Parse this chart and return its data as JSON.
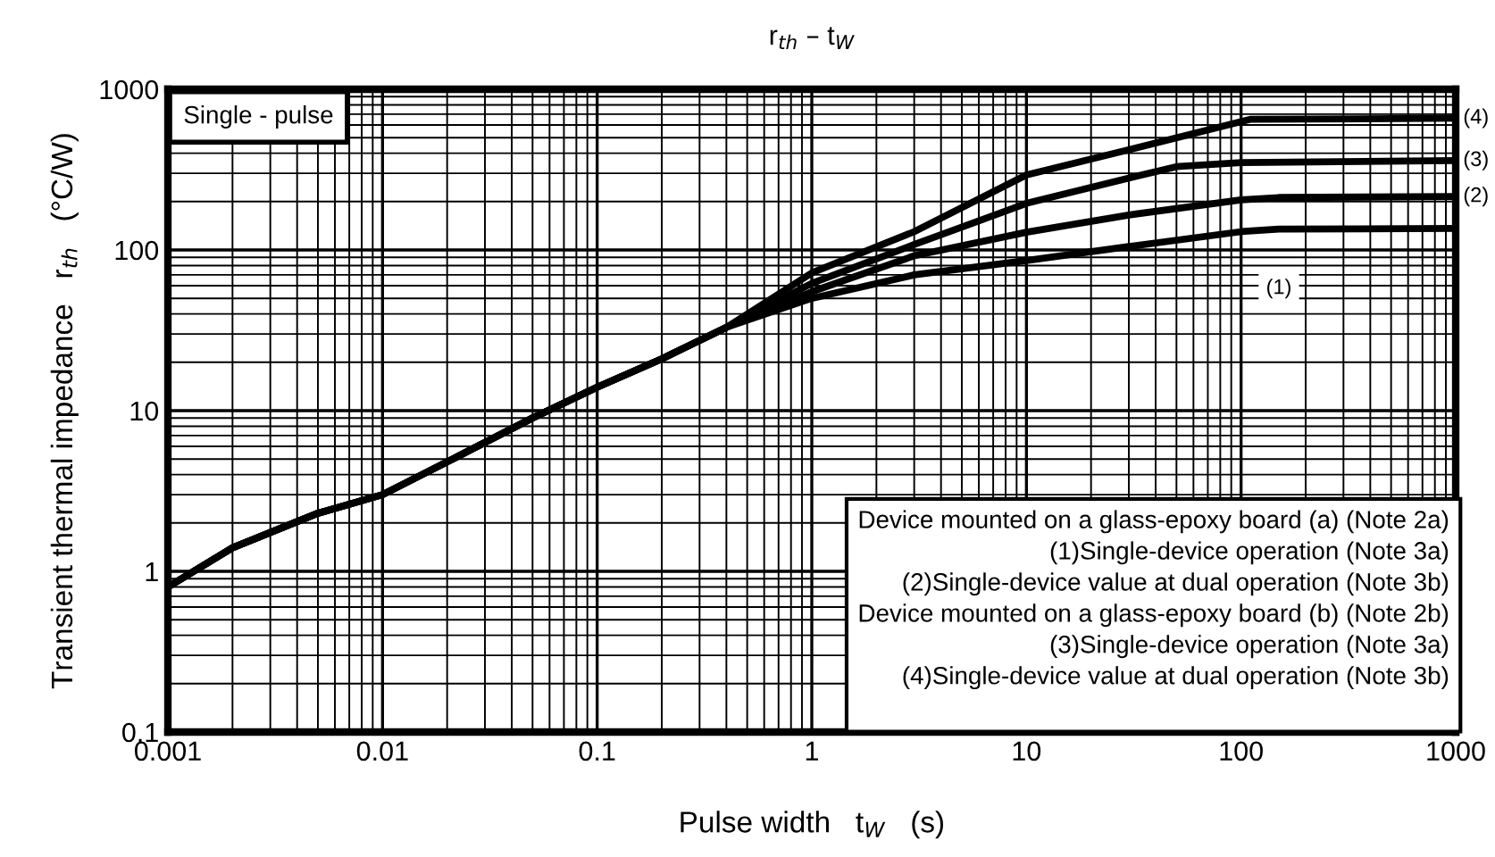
{
  "chart_data": {
    "type": "line",
    "title": "r$_{th}$ – t$_{W}$",
    "xlabel": "Pulse width   t$_{W}$   (s)",
    "ylabel": "Transient thermal impedance   r$_{th}$   (°C/W)",
    "log": "xy",
    "xlim": [
      0.001,
      1000
    ],
    "ylim": [
      0.1,
      1000
    ],
    "xticks": [
      0.001,
      0.01,
      0.1,
      1,
      10,
      100,
      1000
    ],
    "yticks": [
      0.1,
      1,
      10,
      100,
      1000
    ],
    "grid": true,
    "legend": false,
    "marker": "none",
    "line_style": "solid",
    "series": [
      {
        "name": "(1)",
        "color": "#000000",
        "x": [
          0.001,
          0.002,
          0.005,
          0.01,
          0.02,
          0.05,
          0.1,
          0.2,
          0.4,
          1,
          3,
          10,
          30,
          100,
          150,
          1000
        ],
        "values": [
          0.8,
          1.4,
          2.3,
          3,
          4.8,
          9,
          14,
          21,
          33,
          50,
          70,
          86,
          105,
          130,
          135,
          136
        ]
      },
      {
        "name": "(2)",
        "color": "#000000",
        "x": [
          0.001,
          0.002,
          0.005,
          0.01,
          0.02,
          0.05,
          0.1,
          0.2,
          0.4,
          1,
          3,
          10,
          30,
          100,
          150,
          1000
        ],
        "values": [
          0.8,
          1.4,
          2.3,
          3,
          4.8,
          9,
          14,
          21,
          33,
          55,
          92,
          129,
          165,
          205,
          212,
          215
        ]
      },
      {
        "name": "(3)",
        "color": "#000000",
        "x": [
          0.001,
          0.002,
          0.005,
          0.01,
          0.02,
          0.05,
          0.1,
          0.2,
          0.4,
          1,
          3,
          10,
          30,
          50,
          100,
          1000
        ],
        "values": [
          0.8,
          1.4,
          2.3,
          3,
          4.8,
          9,
          14,
          21,
          33,
          62,
          108,
          195,
          280,
          330,
          350,
          360
        ]
      },
      {
        "name": "(4)",
        "color": "#000000",
        "x": [
          0.001,
          0.002,
          0.005,
          0.01,
          0.02,
          0.05,
          0.1,
          0.2,
          0.4,
          1,
          3,
          10,
          30,
          110,
          1000
        ],
        "values": [
          0.8,
          1.4,
          2.3,
          3,
          4.8,
          9,
          14,
          21,
          33,
          72,
          130,
          293,
          420,
          650,
          660
        ]
      }
    ],
    "annotations": [
      "Single - pulse",
      "Device mounted on a glass-epoxy board (a) (Note 2a)\n(1)Single-device operation (Note 3a)\n(2)Single-device value at dual operation (Note 3b)\nDevice mounted on a glass-epoxy board (b) (Note 2b)\n(3)Single-device operation (Note 3a)\n(4)Single-device value at dual operation (Note 3b)"
    ]
  }
}
